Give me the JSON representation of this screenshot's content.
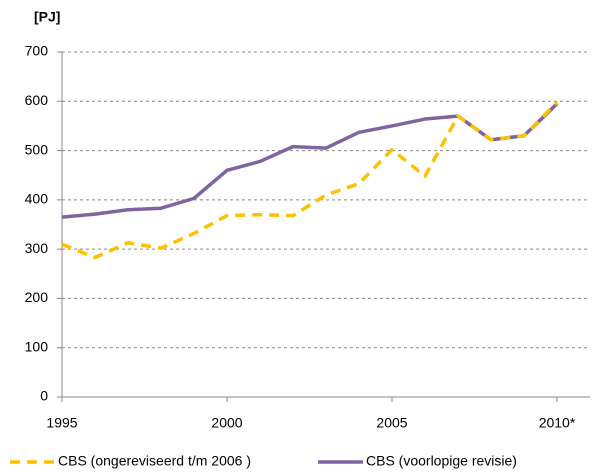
{
  "chart_data": {
    "type": "line",
    "y_label": "[PJ]",
    "x": [
      1995,
      1996,
      1997,
      1998,
      1999,
      2000,
      2001,
      2002,
      2003,
      2004,
      2005,
      2006,
      2007,
      2008,
      2009,
      2010
    ],
    "series": [
      {
        "name": "CBS (ongereviseerd t/m 2006 )",
        "color": "#ffc000",
        "dashed": true,
        "values": [
          310,
          283,
          313,
          302,
          332,
          368,
          370,
          368,
          410,
          433,
          502,
          448,
          570,
          522,
          530,
          598
        ]
      },
      {
        "name": "CBS (voorlopige revisie)",
        "color": "#8064a2",
        "dashed": false,
        "values": [
          365,
          371,
          380,
          383,
          403,
          460,
          478,
          508,
          505,
          537,
          550,
          564,
          570,
          522,
          530,
          595
        ]
      }
    ],
    "xlim": [
      1995,
      2011
    ],
    "xticks": [
      1995,
      2000,
      2005,
      {
        "value": 2010,
        "label": "2010*"
      }
    ],
    "ylim": [
      0,
      700
    ],
    "yticks": [
      0,
      100,
      200,
      300,
      400,
      500,
      600,
      700
    ],
    "grid": true
  }
}
